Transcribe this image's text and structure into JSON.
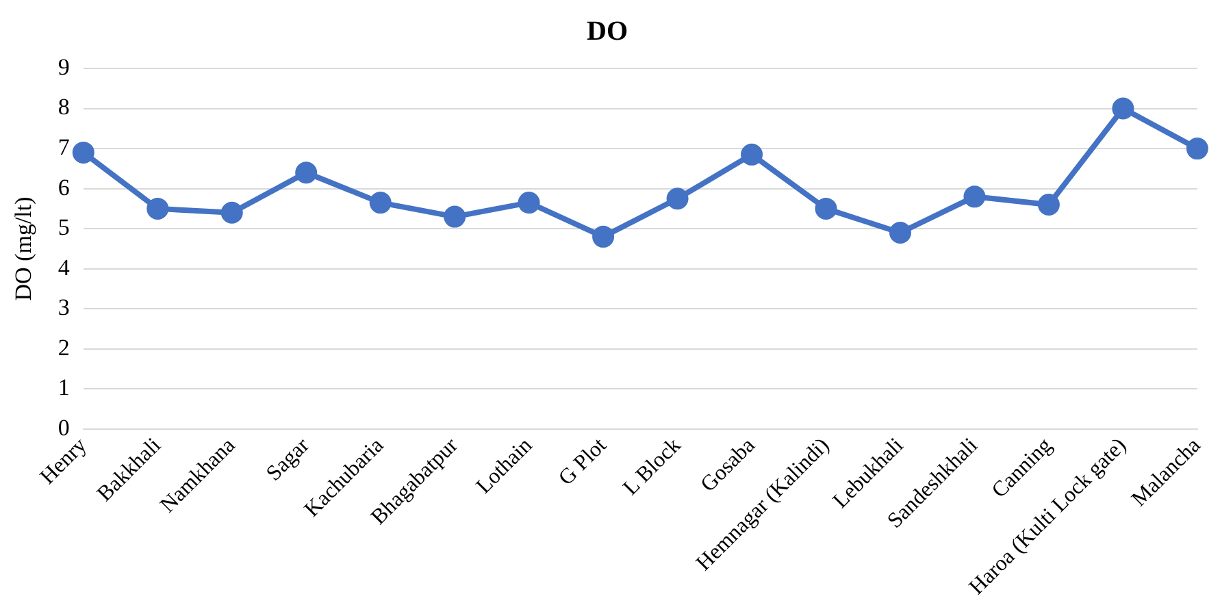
{
  "chart_data": {
    "type": "line",
    "title": "DO",
    "ylabel": "DO (mg/lt)",
    "categories": [
      "Henry",
      "Bakkhali",
      "Namkhana",
      "Sagar",
      "Kachubaria",
      "Bhagabatpur",
      "Lothain",
      "G Plot",
      "L Block",
      "Gosaba",
      "Hemnagar (Kalindi)",
      "Lebukhali",
      "Sandeshkhali",
      "Canning",
      "Haroa (Kulti Lock gate)",
      "Malancha"
    ],
    "series": [
      {
        "color": "#4472c4",
        "values": [
          6.9,
          5.5,
          5.4,
          6.4,
          5.65,
          5.3,
          5.65,
          4.8,
          5.75,
          6.85,
          5.5,
          4.9,
          5.8,
          5.6,
          8.0,
          7.0
        ]
      }
    ],
    "ylim": [
      0,
      9
    ],
    "yticks": [
      0,
      1,
      2,
      3,
      4,
      5,
      6,
      7,
      8,
      9
    ],
    "grid": "y",
    "legend": false,
    "marker": "circle",
    "line_style": "solid"
  }
}
